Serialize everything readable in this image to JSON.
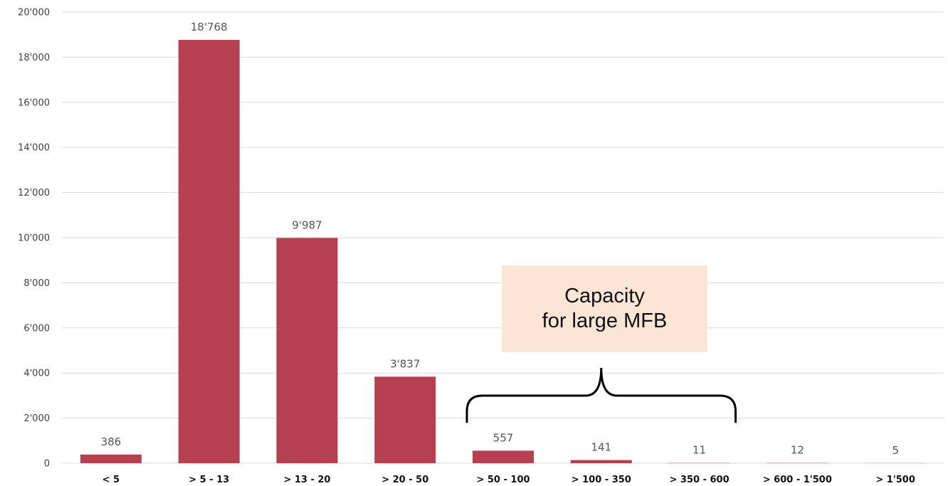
{
  "chart_data": {
    "type": "bar",
    "categories": [
      "< 5",
      "> 5 - 13",
      "> 13 - 20",
      "> 20 - 50",
      "> 50 - 100",
      "> 100 - 350",
      "> 350 - 600",
      "> 600 - 1'500",
      "> 1'500"
    ],
    "values": [
      386,
      18768,
      9987,
      3837,
      557,
      141,
      11,
      12,
      5
    ],
    "data_labels": [
      "386",
      "18'768",
      "9'987",
      "3'837",
      "557",
      "141",
      "11",
      "12",
      "5"
    ],
    "ylim": [
      0,
      20000
    ],
    "yticks": [
      0,
      2000,
      4000,
      6000,
      8000,
      10000,
      12000,
      14000,
      16000,
      18000,
      20000
    ],
    "ytick_labels": [
      "0",
      "2'000",
      "4'000",
      "6'000",
      "8'000",
      "10'000",
      "12'000",
      "14'000",
      "16'000",
      "18'000",
      "20'000"
    ],
    "grid": true,
    "bar_color": "#b5404f",
    "annotation": {
      "lines": [
        "Capacity",
        "for large MFB"
      ],
      "background": "#fbe5d6",
      "bracket_categories": [
        "> 50 - 100",
        "> 100 - 350",
        "> 350 - 600"
      ]
    }
  }
}
